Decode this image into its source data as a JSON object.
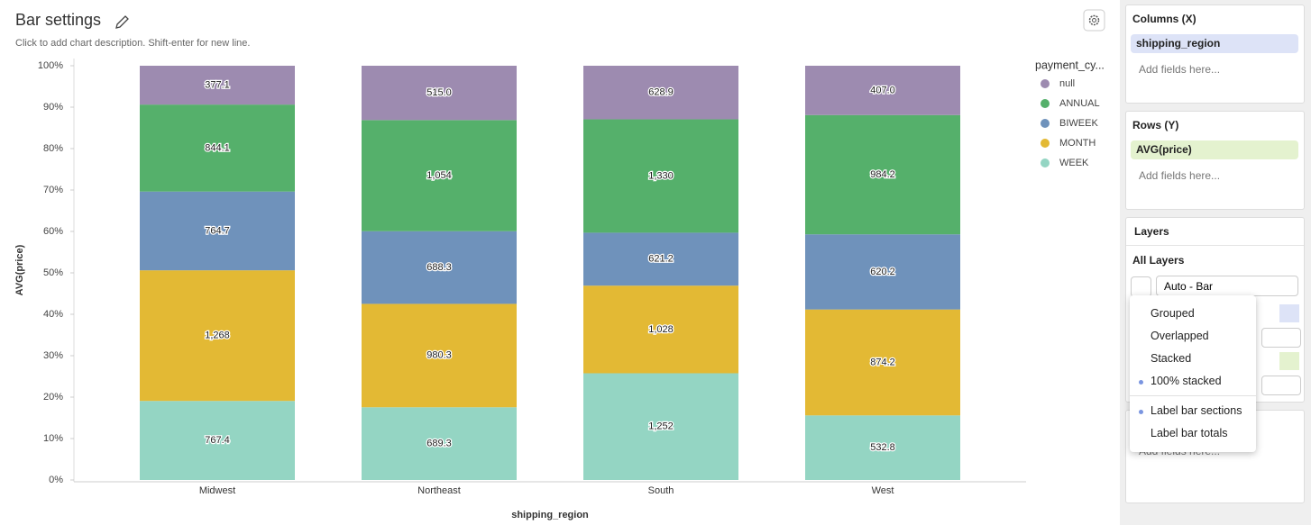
{
  "header": {
    "title": "Bar settings",
    "subtitle": "Click to add chart description. Shift-enter for new line."
  },
  "chart_data": {
    "type": "bar",
    "stacking": "percent",
    "x_label": "shipping_region",
    "y_label": "AVG(price)",
    "legend_title": "payment_cy...",
    "categories": [
      "Midwest",
      "Northeast",
      "South",
      "West"
    ],
    "series": [
      {
        "name": "null",
        "color": "#9d8bb0",
        "values": [
          377.1,
          515.0,
          628.9,
          407.0
        ],
        "value_labels": [
          "377.1",
          "515.0",
          "628.9",
          "407.0"
        ]
      },
      {
        "name": "ANNUAL",
        "color": "#55b06b",
        "values": [
          844.1,
          1054,
          1330,
          984.2
        ],
        "value_labels": [
          "844.1",
          "1,054",
          "1,330",
          "984.2"
        ]
      },
      {
        "name": "BIWEEK",
        "color": "#6f92bb",
        "values": [
          764.7,
          688.3,
          621.2,
          620.2
        ],
        "value_labels": [
          "764.7",
          "688.3",
          "621.2",
          "620.2"
        ]
      },
      {
        "name": "MONTH",
        "color": "#e3b934",
        "values": [
          1268,
          980.3,
          1028,
          874.2
        ],
        "value_labels": [
          "1,268",
          "980.3",
          "1,028",
          "874.2"
        ]
      },
      {
        "name": "WEEK",
        "color": "#94d5c3",
        "values": [
          767.4,
          689.3,
          1252,
          532.8
        ],
        "value_labels": [
          "767.4",
          "689.3",
          "1,252",
          "532.8"
        ]
      }
    ],
    "ylim": [
      0,
      100
    ],
    "yticks": [
      {
        "value": 0,
        "label": "0%"
      },
      {
        "value": 10,
        "label": "10%"
      },
      {
        "value": 20,
        "label": "20%"
      },
      {
        "value": 30,
        "label": "30%"
      },
      {
        "value": 40,
        "label": "40%"
      },
      {
        "value": 50,
        "label": "50%"
      },
      {
        "value": 60,
        "label": "60%"
      },
      {
        "value": 70,
        "label": "70%"
      },
      {
        "value": 80,
        "label": "80%"
      },
      {
        "value": 90,
        "label": "90%"
      },
      {
        "value": 100,
        "label": "100%"
      }
    ]
  },
  "panel": {
    "columns": {
      "title": "Columns (X)",
      "field": "shipping_region",
      "placeholder": "Add fields here..."
    },
    "rows": {
      "title": "Rows (Y)",
      "field": "AVG(price)",
      "placeholder": "Add fields here..."
    },
    "layers": {
      "title": "Layers",
      "group": "All Layers",
      "mark_type": "Auto - Bar"
    },
    "extra": {
      "placeholder": "Add fields here..."
    }
  },
  "menu": {
    "items": [
      "Grouped",
      "Overlapped",
      "Stacked",
      "100% stacked"
    ],
    "label_items": [
      "Label bar sections",
      "Label bar totals"
    ],
    "selected": [
      "100% stacked",
      "Label bar sections"
    ]
  }
}
